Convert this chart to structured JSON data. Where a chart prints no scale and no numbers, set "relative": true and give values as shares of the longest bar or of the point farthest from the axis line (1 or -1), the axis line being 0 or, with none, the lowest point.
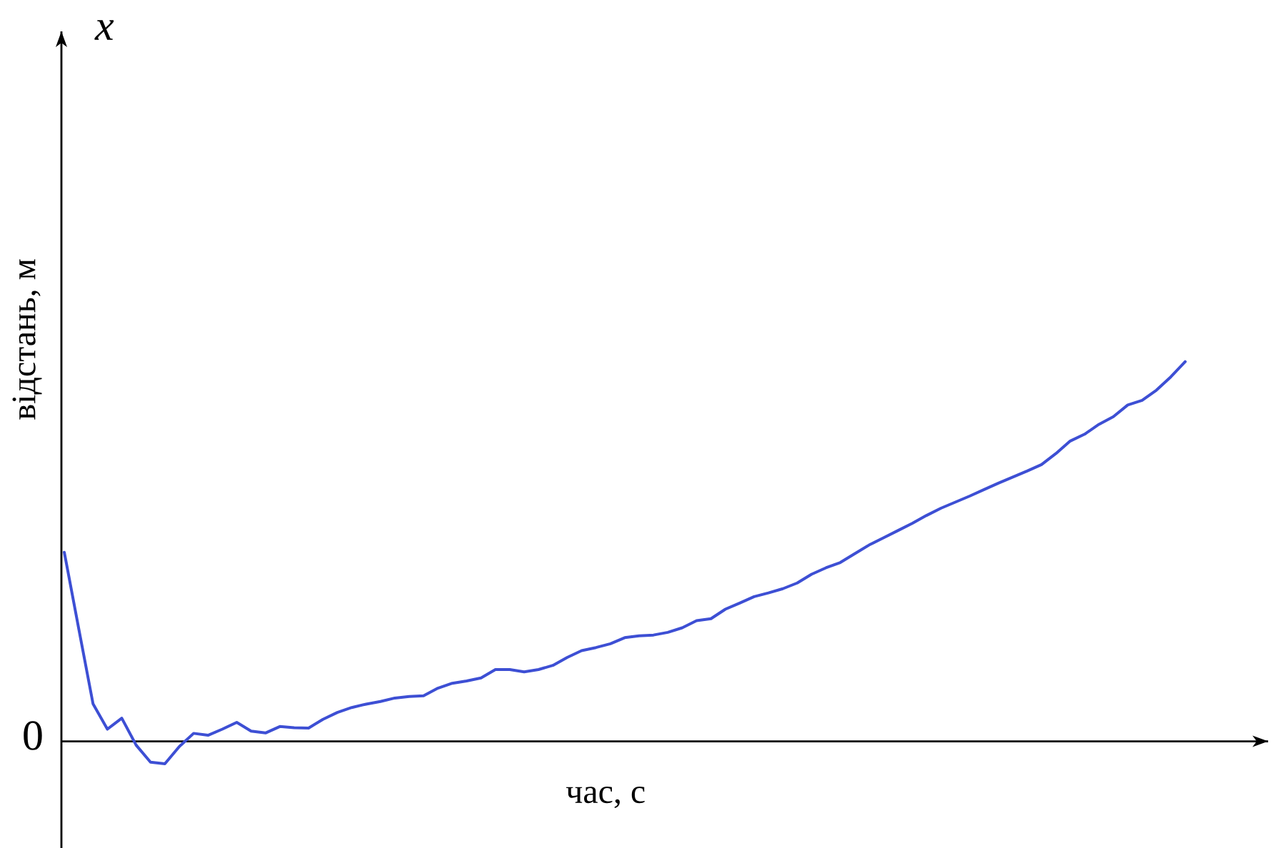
{
  "chart_data": {
    "type": "line",
    "ylabel": "відстань, м",
    "xlabel": "час, с",
    "annotations": [
      "x",
      "0"
    ],
    "relative": true,
    "color": "#3d4fd4",
    "categories": [
      null,
      null,
      null,
      null,
      null,
      null,
      null,
      null,
      null,
      null,
      null,
      null,
      null,
      null,
      null,
      null,
      null,
      null,
      null,
      null,
      null,
      null,
      null,
      null,
      null,
      null,
      null,
      null,
      null,
      null,
      null,
      null,
      null,
      null,
      null,
      null,
      null,
      null,
      null,
      null,
      null,
      null,
      null,
      null,
      null,
      null,
      null,
      null,
      null,
      null,
      null,
      null,
      null,
      null,
      null,
      null,
      null,
      null,
      null,
      null,
      null,
      null,
      null,
      null,
      null,
      null,
      null,
      null,
      null,
      null,
      null,
      null,
      null,
      null,
      null,
      null,
      null,
      null,
      null
    ],
    "values": [
      0.498,
      0.298,
      0.099,
      0.032,
      0.061,
      -0.01,
      -0.055,
      -0.059,
      -0.014,
      0.021,
      0.016,
      0.032,
      0.05,
      0.027,
      0.022,
      0.039,
      0.036,
      0.035,
      0.058,
      0.076,
      0.089,
      0.098,
      0.105,
      0.114,
      0.118,
      0.12,
      0.14,
      0.153,
      0.159,
      0.167,
      0.189,
      0.189,
      0.183,
      0.189,
      0.2,
      0.221,
      0.239,
      0.247,
      0.257,
      0.273,
      0.278,
      0.28,
      0.287,
      0.299,
      0.318,
      0.323,
      0.348,
      0.364,
      0.381,
      0.391,
      0.402,
      0.417,
      0.44,
      0.457,
      0.471,
      0.494,
      0.517,
      0.536,
      0.555,
      0.574,
      0.595,
      0.614,
      0.63,
      0.646,
      0.663,
      0.68,
      0.696,
      0.712,
      0.729,
      0.758,
      0.791,
      0.809,
      0.835,
      0.855,
      0.886,
      0.898,
      0.925,
      0.96,
      1.0
    ]
  }
}
